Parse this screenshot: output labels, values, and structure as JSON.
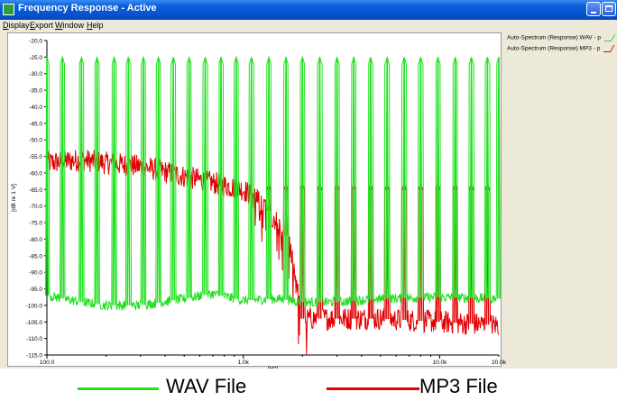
{
  "window": {
    "title": "Frequency Response - Active"
  },
  "menu": [
    "Display",
    "Export",
    "Window",
    "Help"
  ],
  "colors": {
    "wav": "#22e022",
    "mp3": "#e00000",
    "titlebar": "#0553d1"
  },
  "icons": {
    "app": "app-icon",
    "minimize": "minimize-icon",
    "maximize": "maximize-icon"
  },
  "legend_top": [
    "Auto-Spectrum (Response) WAV - p",
    "Auto-Spectrum (Response) MP3 - p"
  ],
  "bottom_legend": {
    "wav_label": "WAV File",
    "mp3_label": "MP3 File"
  },
  "chart_data": {
    "type": "line",
    "xscale": "log",
    "xlim": [
      100,
      20000
    ],
    "ylim": [
      -115,
      -20
    ],
    "ylabel": "[dB re 1 V]",
    "xlabel": "[Hz]",
    "y_ticks": [
      "-20.0",
      "-25.0",
      "-30.0",
      "-35.0",
      "-40.0",
      "-45.0",
      "-50.0",
      "-55.0",
      "-60.0",
      "-65.0",
      "-70.0",
      "-75.0",
      "-80.0",
      "-85.0",
      "-90.0",
      "-95.0",
      "-100.0",
      "-105.0",
      "-110.0",
      "-115.0"
    ],
    "x_ticks": [
      {
        "value": 100,
        "label": "100.0"
      },
      {
        "value": 1000,
        "label": "1.0k"
      },
      {
        "value": 10000,
        "label": "10.0k"
      },
      {
        "value": 20000,
        "label": "20.0k"
      }
    ],
    "grid": false,
    "series": [
      {
        "name": "Auto-Spectrum (Response) WAV - p",
        "color": "#22e022",
        "peak_freqs": [
          100,
          120,
          150,
          180,
          220,
          260,
          310,
          370,
          440,
          530,
          640,
          770,
          920,
          1100,
          1350,
          1650,
          2000,
          2450,
          3000,
          3650,
          4450,
          5400,
          6600,
          8000,
          9800,
          12000,
          14500,
          17500,
          20000
        ],
        "peak_level": -25,
        "floor": [
          [
            100,
            -97
          ],
          [
            150,
            -99
          ],
          [
            200,
            -100
          ],
          [
            300,
            -100
          ],
          [
            500,
            -98
          ],
          [
            700,
            -96.5
          ],
          [
            1000,
            -98.5
          ],
          [
            1500,
            -98
          ],
          [
            2000,
            -99
          ],
          [
            3000,
            -99
          ],
          [
            5000,
            -98
          ],
          [
            10000,
            -97.5
          ],
          [
            20000,
            -98
          ]
        ]
      },
      {
        "name": "Auto-Spectrum (Response) MP3 - p",
        "color": "#e00000",
        "peak_freqs": [
          1350,
          1650,
          2000,
          2450,
          3000,
          3650,
          4450,
          5400,
          6600,
          8000,
          9800,
          12000,
          14500,
          17500
        ],
        "peak_level": -63,
        "floor": [
          [
            100,
            -57
          ],
          [
            150,
            -56
          ],
          [
            200,
            -57
          ],
          [
            300,
            -58
          ],
          [
            500,
            -61
          ],
          [
            700,
            -63
          ],
          [
            1000,
            -65
          ],
          [
            1300,
            -70
          ],
          [
            1700,
            -80
          ],
          [
            2000,
            -104
          ],
          [
            3000,
            -104
          ],
          [
            5000,
            -104
          ],
          [
            10000,
            -105
          ],
          [
            20000,
            -106
          ]
        ]
      }
    ]
  }
}
